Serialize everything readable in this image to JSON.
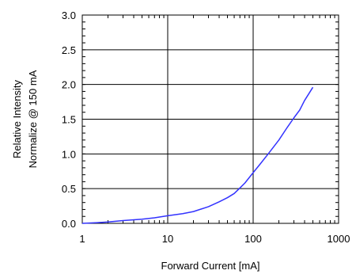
{
  "chart_data": {
    "type": "line",
    "title": "",
    "xlabel": "Forward Current [mA]",
    "ylabel": [
      "Relative Intensity",
      "Normalize @ 150 mA"
    ],
    "xscale": "log",
    "xlim": [
      1,
      1000
    ],
    "ylim": [
      0,
      3.0
    ],
    "x_ticks": [
      1,
      10,
      100,
      1000
    ],
    "x_tick_labels": [
      "1",
      "10",
      "100",
      "1000"
    ],
    "y_ticks": [
      0,
      0.5,
      1.0,
      1.5,
      2.0,
      2.5,
      3.0
    ],
    "y_tick_labels": [
      "0.0",
      "0.5",
      "1.0",
      "1.5",
      "2.0",
      "2.5",
      "3.0"
    ],
    "grid": true,
    "legend": "none",
    "series": [
      {
        "color": "#3333ff",
        "x": [
          1,
          1.5,
          2,
          3,
          5,
          7,
          10,
          15,
          20,
          30,
          40,
          50,
          60,
          70,
          80,
          100,
          120,
          150,
          200,
          250,
          300,
          350,
          400,
          450,
          500
        ],
        "y": [
          0.0,
          0.01,
          0.02,
          0.04,
          0.06,
          0.08,
          0.11,
          0.14,
          0.17,
          0.24,
          0.31,
          0.37,
          0.43,
          0.51,
          0.58,
          0.73,
          0.85,
          1.0,
          1.2,
          1.38,
          1.52,
          1.63,
          1.77,
          1.87,
          1.96
        ]
      }
    ]
  }
}
